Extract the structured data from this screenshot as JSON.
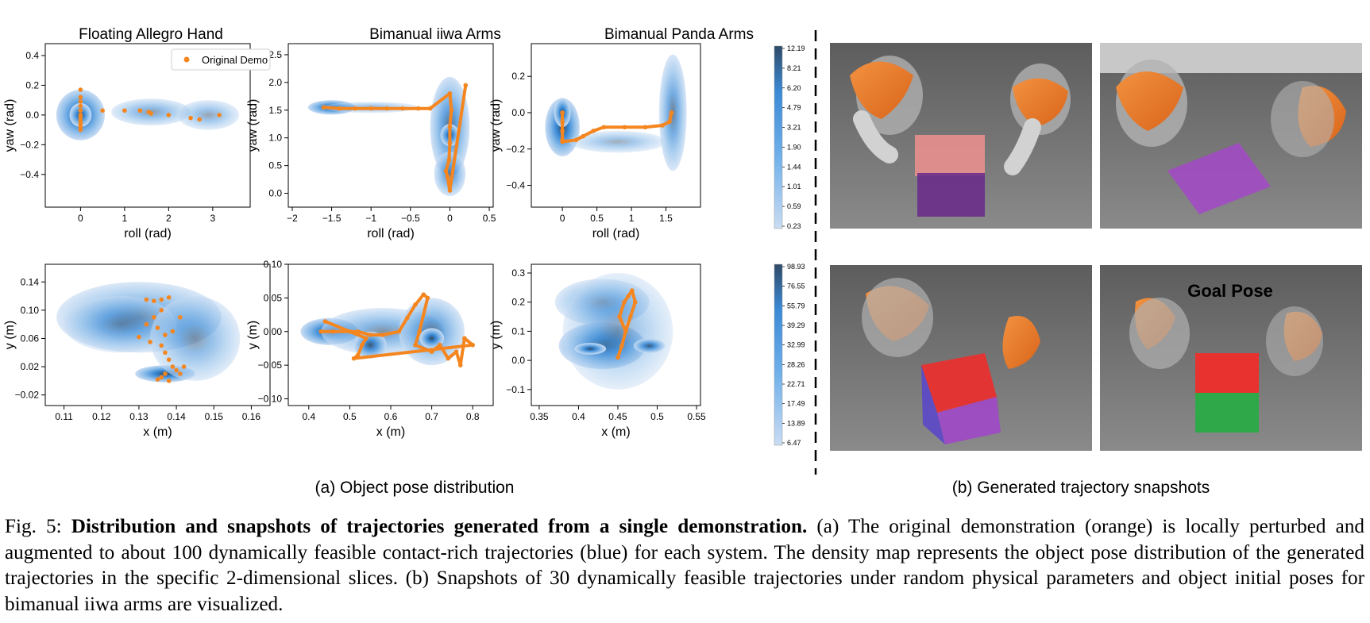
{
  "figure": {
    "column_titles": [
      "Floating Allegro Hand",
      "Bimanual iiwa Arms",
      "Bimanual Panda Arms"
    ],
    "subcaption_a": "(a) Object pose distribution",
    "subcaption_b": "(b) Generated trajectory snapshots",
    "legend_label": "Original Demo",
    "goal_pose_label": "Goal Pose",
    "colors": {
      "demo": "#f5861f",
      "density_low": "#c9dcf3",
      "density_mid": "#4f9fe2",
      "density_high": "#2f4a67",
      "robot_orange": "#ef7a1d",
      "robot_gray": "#a7a7a7",
      "scene_bg": "#6f6f6f"
    }
  },
  "chart_data": [
    {
      "type": "scatter",
      "title": "Floating Allegro Hand",
      "xlabel": "roll (rad)",
      "ylabel": "yaw (rad)",
      "xlim": [
        -0.8,
        3.85
      ],
      "ylim": [
        -0.62,
        0.48
      ],
      "xticks": [
        0,
        1,
        2,
        3
      ],
      "yticks": [
        -0.4,
        -0.2,
        0.0,
        0.2,
        0.4
      ],
      "legend": "top-right",
      "series": [
        {
          "name": "Original Demo",
          "x": [
            0,
            0,
            0,
            0,
            0,
            0,
            0,
            0,
            0,
            0,
            0,
            0.5,
            1,
            1.35,
            1.55,
            1.6,
            2,
            2.5,
            2.7,
            3.15
          ],
          "y": [
            0.17,
            0.12,
            0.09,
            0.06,
            0.03,
            0.0,
            -0.02,
            -0.04,
            -0.06,
            -0.08,
            -0.1,
            0.03,
            0.03,
            0.03,
            0.02,
            0.01,
            0.0,
            -0.02,
            -0.03,
            0.0
          ]
        }
      ]
    },
    {
      "type": "scatter",
      "title": "Bimanual iiwa Arms",
      "xlabel": "roll (rad)",
      "ylabel": "yaw (rad)",
      "xlim": [
        -2.05,
        0.55
      ],
      "ylim": [
        -0.25,
        2.7
      ],
      "xticks": [
        -2.0,
        -1.5,
        -1.0,
        -0.5,
        0.0,
        0.5
      ],
      "yticks": [
        0.0,
        0.5,
        1.0,
        1.5,
        2.0,
        2.5
      ],
      "series": [
        {
          "name": "Original Demo",
          "x": [
            -1.6,
            -1.4,
            -1.2,
            -1.0,
            -0.8,
            -0.6,
            -0.4,
            -0.25,
            0.0,
            0.02,
            0.0,
            0.0,
            -0.01,
            -0.05,
            -0.03,
            0.0,
            0.2
          ],
          "y": [
            1.55,
            1.53,
            1.53,
            1.53,
            1.53,
            1.53,
            1.53,
            1.53,
            1.8,
            1.5,
            1.2,
            0.9,
            0.6,
            0.4,
            0.3,
            0.05,
            1.95
          ]
        }
      ]
    },
    {
      "type": "scatter",
      "title": "Bimanual Panda Arms",
      "xlabel": "roll (rad)",
      "ylabel": "yaw (rad)",
      "xlim": [
        -0.45,
        2.0
      ],
      "ylim": [
        -0.52,
        0.38
      ],
      "xticks": [
        0.0,
        0.5,
        1.0,
        1.5
      ],
      "yticks": [
        -0.4,
        -0.2,
        0.0,
        0.2
      ],
      "colorbar": [
        "12.19",
        "8.21",
        "6.20",
        "4.79",
        "3.21",
        "1.90",
        "1.44",
        "1.01",
        "0.59",
        "0.23"
      ],
      "series": [
        {
          "name": "Original Demo",
          "x": [
            0.0,
            0.0,
            0.0,
            0.0,
            0.0,
            0.2,
            0.3,
            0.45,
            0.6,
            0.9,
            1.2,
            1.45,
            1.55,
            1.58
          ],
          "y": [
            0.0,
            -0.05,
            -0.1,
            -0.15,
            -0.16,
            -0.15,
            -0.13,
            -0.1,
            -0.08,
            -0.08,
            -0.08,
            -0.07,
            -0.05,
            0.0
          ]
        }
      ]
    },
    {
      "type": "scatter",
      "title": "",
      "xlabel": "x (m)",
      "ylabel": "y (m)",
      "xlim": [
        0.105,
        0.165
      ],
      "ylim": [
        -0.035,
        0.165
      ],
      "xticks": [
        0.11,
        0.12,
        0.13,
        0.14,
        0.15,
        0.16
      ],
      "yticks": [
        -0.02,
        0.02,
        0.06,
        0.1,
        0.14
      ],
      "series": [
        {
          "name": "Original Demo",
          "x": [
            0.132,
            0.134,
            0.136,
            0.138,
            0.136,
            0.134,
            0.132,
            0.135,
            0.137,
            0.139,
            0.141,
            0.13,
            0.133,
            0.136,
            0.137,
            0.138,
            0.139,
            0.14,
            0.141,
            0.142,
            0.136,
            0.138,
            0.137,
            0.135
          ],
          "y": [
            0.115,
            0.113,
            0.115,
            0.118,
            0.1,
            0.09,
            0.08,
            0.075,
            0.065,
            0.07,
            0.09,
            0.062,
            0.055,
            0.05,
            0.04,
            0.03,
            0.02,
            0.015,
            0.01,
            0.02,
            0.005,
            0.0,
            0.01,
            0.002
          ]
        }
      ]
    },
    {
      "type": "scatter",
      "title": "",
      "xlabel": "x (m)",
      "ylabel": "y (m)",
      "xlim": [
        0.35,
        0.85
      ],
      "ylim": [
        -0.11,
        0.1
      ],
      "xticks": [
        0.4,
        0.5,
        0.6,
        0.7,
        0.8
      ],
      "yticks": [
        -0.1,
        -0.05,
        0.0,
        0.05,
        0.1
      ],
      "series": [
        {
          "name": "Original Demo",
          "x": [
            0.43,
            0.46,
            0.5,
            0.52,
            0.55,
            0.58,
            0.62,
            0.64,
            0.66,
            0.68,
            0.69,
            0.67,
            0.66,
            0.7,
            0.72,
            0.74,
            0.76,
            0.77,
            0.78,
            0.8,
            0.51,
            0.52,
            0.53,
            0.54,
            0.44
          ],
          "y": [
            0.0,
            0.0,
            0.0,
            0.0,
            -0.005,
            -0.005,
            0.0,
            0.02,
            0.04,
            0.055,
            0.05,
            0.0,
            -0.02,
            -0.03,
            -0.02,
            -0.04,
            -0.03,
            -0.05,
            -0.01,
            -0.02,
            -0.04,
            -0.035,
            -0.02,
            -0.01,
            0.015
          ]
        }
      ]
    },
    {
      "type": "scatter",
      "title": "",
      "xlabel": "x (m)",
      "ylabel": "y (m)",
      "xlim": [
        0.34,
        0.555
      ],
      "ylim": [
        -0.155,
        0.33
      ],
      "xticks": [
        0.35,
        0.4,
        0.45,
        0.5,
        0.55
      ],
      "yticks": [
        -0.1,
        0.0,
        0.1,
        0.2,
        0.3
      ],
      "colorbar": [
        "98.93",
        "76.55",
        "55.79",
        "39.29",
        "32.99",
        "28.26",
        "22.71",
        "17.49",
        "13.89",
        "6.47"
      ],
      "series": [
        {
          "name": "Original Demo",
          "x": [
            0.45,
            0.455,
            0.46,
            0.452,
            0.458,
            0.463,
            0.468,
            0.472,
            0.466,
            0.46,
            0.455
          ],
          "y": [
            0.01,
            0.05,
            0.1,
            0.15,
            0.2,
            0.22,
            0.24,
            0.2,
            0.15,
            0.1,
            0.05
          ]
        }
      ]
    }
  ],
  "caption": {
    "fig_label": "Fig. 5: ",
    "bold_title": "Distribution and snapshots of trajectories generated from a single demonstration.",
    "body": " (a) The original demonstration (orange) is locally perturbed and augmented to about 100 dynamically feasible contact-rich trajectories (blue) for each system. The density map represents the object pose distribution of the generated trajectories in the specific 2-dimensional slices. (b) Snapshots of 30 dynamically feasible trajectories under random physical parameters and object initial poses for bimanual iiwa arms are visualized."
  }
}
